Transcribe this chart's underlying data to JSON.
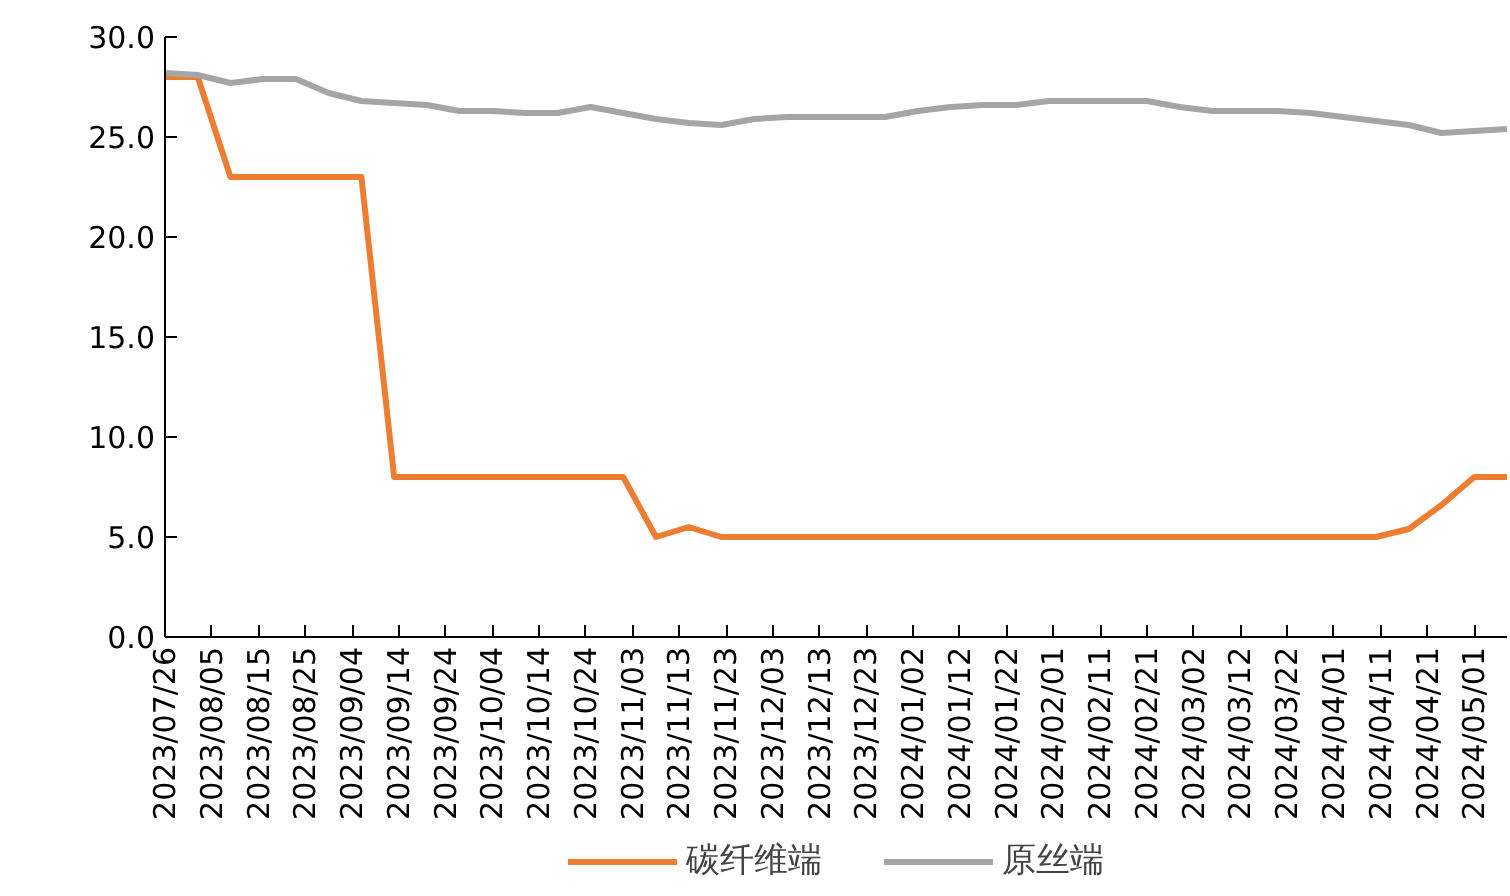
{
  "chart_data": {
    "type": "line",
    "x": [
      "2023-07-26",
      "2023-08-02",
      "2023-08-09",
      "2023-08-16",
      "2023-08-23",
      "2023-08-30",
      "2023-09-06",
      "2023-09-13",
      "2023-09-20",
      "2023-09-27",
      "2023-10-04",
      "2023-10-11",
      "2023-10-18",
      "2023-10-25",
      "2023-11-01",
      "2023-11-08",
      "2023-11-15",
      "2023-11-22",
      "2023-11-29",
      "2023-12-06",
      "2023-12-13",
      "2023-12-20",
      "2023-12-27",
      "2024-01-03",
      "2024-01-10",
      "2024-01-17",
      "2024-01-24",
      "2024-01-31",
      "2024-02-07",
      "2024-02-14",
      "2024-02-21",
      "2024-02-28",
      "2024-03-06",
      "2024-03-13",
      "2024-03-20",
      "2024-03-27",
      "2024-04-03",
      "2024-04-10",
      "2024-04-17",
      "2024-04-24",
      "2024-05-01",
      "2024-05-08"
    ],
    "series": [
      {
        "name": "碳纤维端",
        "color": "#ed7d31",
        "values": [
          28,
          28,
          23,
          23,
          23,
          23,
          23,
          8,
          8,
          8,
          8,
          8,
          8,
          8,
          8,
          5,
          5.5,
          5,
          5,
          5,
          5,
          5,
          5,
          5,
          5,
          5,
          5,
          5,
          5,
          5,
          5,
          5,
          5,
          5,
          5,
          5,
          5,
          5,
          5.4,
          6.6,
          8,
          8
        ]
      },
      {
        "name": "原丝端",
        "color": "#a5a5a5",
        "values": [
          28.2,
          28.1,
          27.7,
          27.9,
          27.9,
          27.2,
          26.8,
          26.7,
          26.6,
          26.3,
          26.3,
          26.2,
          26.2,
          26.5,
          26.2,
          25.9,
          25.7,
          25.6,
          25.9,
          26.0,
          26.0,
          26.0,
          26.0,
          26.3,
          26.5,
          26.6,
          26.6,
          26.8,
          26.8,
          26.8,
          26.8,
          26.5,
          26.3,
          26.3,
          26.3,
          26.2,
          26.0,
          25.8,
          25.6,
          25.2,
          25.3,
          25.4
        ]
      }
    ],
    "xlim": [
      "2023-07-26",
      "2024-05-08"
    ],
    "xticks": [
      {
        "value": "2023-07-26",
        "label": "2023/07/26"
      },
      {
        "value": "2023-08-05",
        "label": "2023/08/05"
      },
      {
        "value": "2023-08-15",
        "label": "2023/08/15"
      },
      {
        "value": "2023-08-25",
        "label": "2023/08/25"
      },
      {
        "value": "2023-09-04",
        "label": "2023/09/04"
      },
      {
        "value": "2023-09-14",
        "label": "2023/09/14"
      },
      {
        "value": "2023-09-24",
        "label": "2023/09/24"
      },
      {
        "value": "2023-10-04",
        "label": "2023/10/04"
      },
      {
        "value": "2023-10-14",
        "label": "2023/10/14"
      },
      {
        "value": "2023-10-24",
        "label": "2023/10/24"
      },
      {
        "value": "2023-11-03",
        "label": "2023/11/03"
      },
      {
        "value": "2023-11-13",
        "label": "2023/11/13"
      },
      {
        "value": "2023-11-23",
        "label": "2023/11/23"
      },
      {
        "value": "2023-12-03",
        "label": "2023/12/03"
      },
      {
        "value": "2023-12-13",
        "label": "2023/12/13"
      },
      {
        "value": "2023-12-23",
        "label": "2023/12/23"
      },
      {
        "value": "2024-01-02",
        "label": "2024/01/02"
      },
      {
        "value": "2024-01-12",
        "label": "2024/01/12"
      },
      {
        "value": "2024-01-22",
        "label": "2024/01/22"
      },
      {
        "value": "2024-02-01",
        "label": "2024/02/01"
      },
      {
        "value": "2024-02-11",
        "label": "2024/02/11"
      },
      {
        "value": "2024-02-21",
        "label": "2024/02/21"
      },
      {
        "value": "2024-03-02",
        "label": "2024/03/02"
      },
      {
        "value": "2024-03-12",
        "label": "2024/03/12"
      },
      {
        "value": "2024-03-22",
        "label": "2024/03/22"
      },
      {
        "value": "2024-04-01",
        "label": "2024/04/01"
      },
      {
        "value": "2024-04-11",
        "label": "2024/04/11"
      },
      {
        "value": "2024-04-21",
        "label": "2024/04/21"
      },
      {
        "value": "2024-05-01",
        "label": "2024/05/01"
      }
    ],
    "ylim": [
      0,
      30
    ],
    "yticks": [
      {
        "value": 0,
        "label": "0.0"
      },
      {
        "value": 5,
        "label": "5.0"
      },
      {
        "value": 10,
        "label": "10.0"
      },
      {
        "value": 15,
        "label": "15.0"
      },
      {
        "value": 20,
        "label": "20.0"
      },
      {
        "value": 25,
        "label": "25.0"
      },
      {
        "value": 30,
        "label": "30.0"
      }
    ],
    "grid": false,
    "legend": "bottom",
    "marker": "none",
    "line_style": "solid"
  }
}
